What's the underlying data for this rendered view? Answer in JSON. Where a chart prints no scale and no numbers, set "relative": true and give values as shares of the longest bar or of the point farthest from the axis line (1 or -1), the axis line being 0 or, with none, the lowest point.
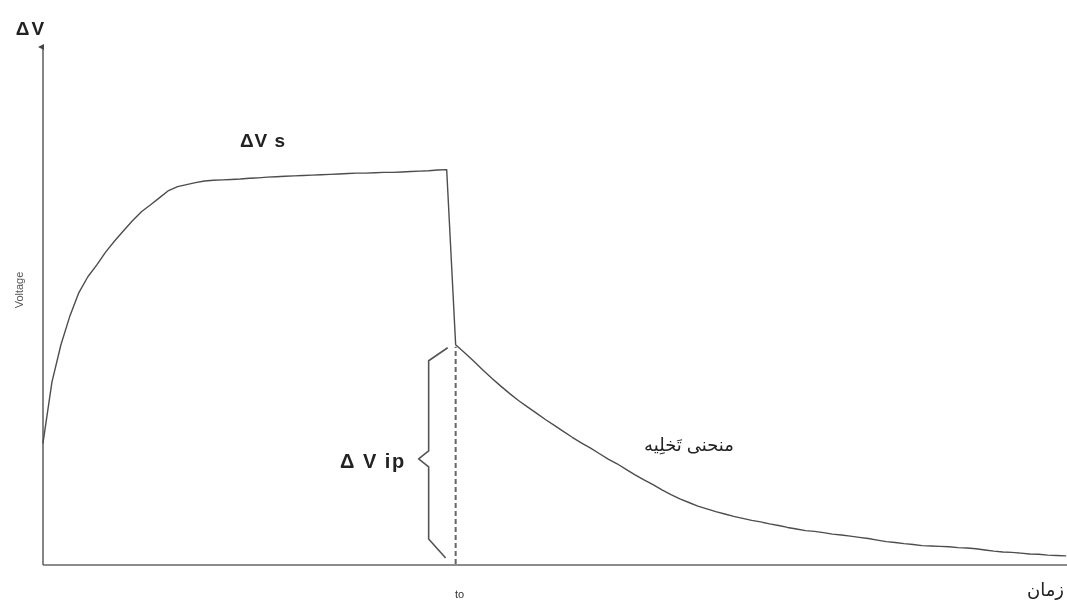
{
  "chart_data": {
    "type": "line",
    "relative": true,
    "xlabel": "زمان",
    "ylabel": "Voltage",
    "color": "#4d4d4d",
    "categories": [
      null,
      null,
      null,
      null,
      null,
      null,
      null,
      null,
      null,
      null,
      null,
      null,
      null,
      null,
      null,
      null,
      null,
      null,
      null,
      null,
      null,
      null,
      null,
      null,
      null,
      null,
      null,
      null,
      null,
      null,
      null,
      null,
      null,
      null,
      null,
      null,
      null,
      null,
      null,
      null,
      null,
      null,
      null,
      null,
      null,
      null,
      null,
      null,
      null,
      null,
      null,
      null,
      null,
      null,
      null,
      null,
      null,
      null,
      null,
      null,
      null,
      null,
      null,
      null,
      null,
      null,
      null,
      null,
      null,
      null,
      null,
      null,
      null,
      null,
      null,
      null,
      null,
      null,
      null,
      null,
      null,
      null,
      null,
      null,
      null,
      null,
      null,
      null,
      null,
      null,
      null,
      null,
      null,
      null,
      null,
      null,
      null,
      null,
      null,
      null,
      null,
      null,
      null,
      null,
      null,
      null,
      null,
      null,
      null,
      null,
      null,
      null,
      null,
      null,
      null
    ],
    "values": [
      0.309,
      0.463,
      0.557,
      0.63,
      0.689,
      0.729,
      0.759,
      0.792,
      0.82,
      0.846,
      0.871,
      0.894,
      0.911,
      0.929,
      0.947,
      0.957,
      0.962,
      0.967,
      0.971,
      0.973,
      0.974,
      0.975,
      0.976,
      0.978,
      0.979,
      0.981,
      0.982,
      0.983,
      0.984,
      0.985,
      0.986,
      0.987,
      0.988,
      0.989,
      0.99,
      0.991,
      0.991,
      0.992,
      0.993,
      0.993,
      0.994,
      0.995,
      0.996,
      0.997,
      0.999,
      1,
      0.557,
      0.537,
      0.516,
      0.494,
      0.473,
      0.453,
      0.434,
      0.416,
      0.4,
      0.384,
      0.368,
      0.353,
      0.338,
      0.323,
      0.309,
      0.296,
      0.282,
      0.268,
      0.256,
      0.242,
      0.228,
      0.215,
      0.203,
      0.19,
      0.178,
      0.167,
      0.158,
      0.149,
      0.142,
      0.135,
      0.129,
      0.123,
      0.118,
      0.113,
      0.109,
      0.104,
      0.1,
      0.095,
      0.091,
      0.087,
      0.085,
      0.082,
      0.078,
      0.076,
      0.073,
      0.07,
      0.067,
      0.063,
      0.059,
      0.057,
      0.054,
      0.052,
      0.049,
      0.048,
      0.047,
      0.046,
      0.044,
      0.043,
      0.041,
      0.038,
      0.035,
      0.033,
      0.032,
      0.03,
      0.028,
      0.027,
      0.025,
      0.024,
      0.023
    ],
    "annotations": [
      "ΔV",
      "ΔV s",
      "Δ V ip",
      "منحنی تَخلِیه",
      "to"
    ]
  }
}
